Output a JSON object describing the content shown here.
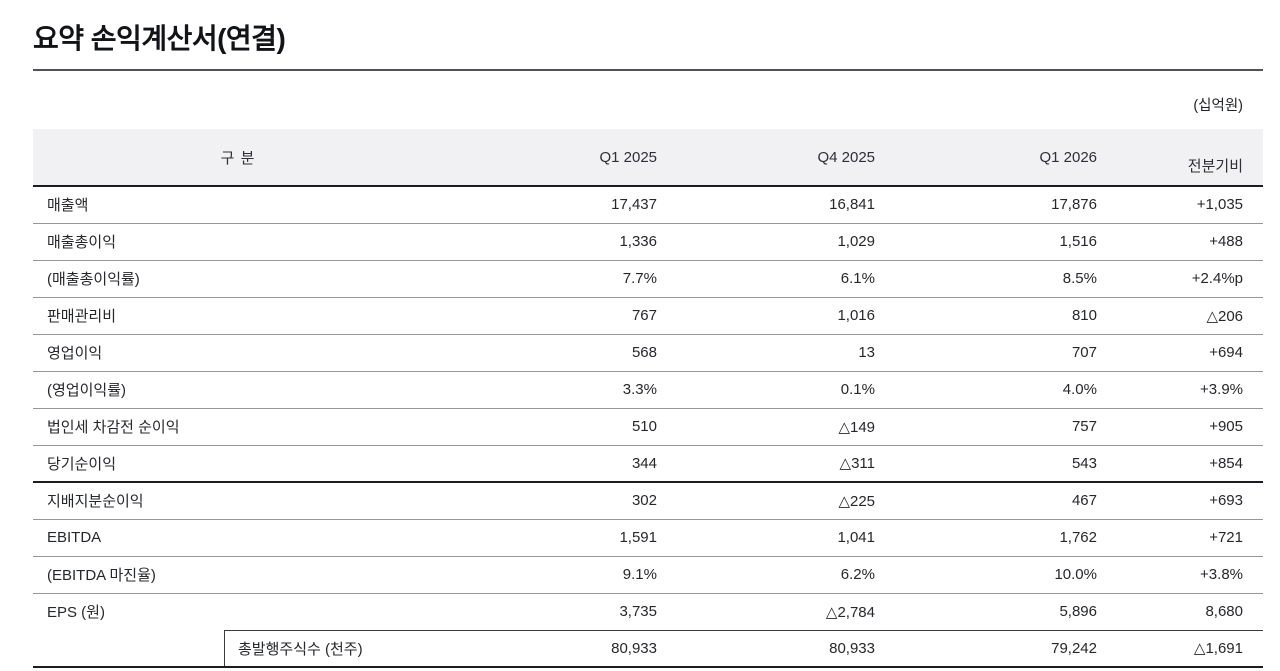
{
  "title": "요약 손익계산서(연결)",
  "unit_label": "(십억원)",
  "table": {
    "header": {
      "category": "구 분",
      "col_q1_2025": "Q1 2025",
      "col_q4_2025": "Q4 2025",
      "col_q1_2026": "Q1 2026",
      "col_qoq": "전분기비"
    },
    "rows": [
      {
        "label": "매출액",
        "q1_2025": "17,437",
        "q4_2025": "16,841",
        "q1_2026": "17,876",
        "qoq": "+1,035"
      },
      {
        "label": "매출총이익",
        "q1_2025": "1,336",
        "q4_2025": "1,029",
        "q1_2026": "1,516",
        "qoq": "+488"
      },
      {
        "label": "(매출총이익률)",
        "q1_2025": "7.7%",
        "q4_2025": "6.1%",
        "q1_2026": "8.5%",
        "qoq": "+2.4%p"
      },
      {
        "label": "판매관리비",
        "q1_2025": "767",
        "q4_2025": "1,016",
        "q1_2026": "810",
        "qoq": "△206"
      },
      {
        "label": "영업이익",
        "q1_2025": "568",
        "q4_2025": "13",
        "q1_2026": "707",
        "qoq": "+694"
      },
      {
        "label": "(영업이익률)",
        "q1_2025": "3.3%",
        "q4_2025": "0.1%",
        "q1_2026": "4.0%",
        "qoq": "+3.9%"
      },
      {
        "label": "법인세 차감전 순이익",
        "q1_2025": "510",
        "q4_2025": "△149",
        "q1_2026": "757",
        "qoq": "+905"
      },
      {
        "label": "당기순이익",
        "q1_2025": "344",
        "q4_2025": "△311",
        "q1_2026": "543",
        "qoq": "+854"
      },
      {
        "label": "지배지분순이익",
        "q1_2025": "302",
        "q4_2025": "△225",
        "q1_2026": "467",
        "qoq": "+693"
      },
      {
        "label": "EBITDA",
        "q1_2025": "1,591",
        "q4_2025": "1,041",
        "q1_2026": "1,762",
        "qoq": "+721"
      },
      {
        "label": "(EBITDA 마진율)",
        "q1_2025": "9.1%",
        "q4_2025": "6.2%",
        "q1_2026": "10.0%",
        "qoq": "+3.8%"
      },
      {
        "label": "EPS (원)",
        "q1_2025": "3,735",
        "q4_2025": "△2,784",
        "q1_2026": "5,896",
        "qoq": "8,680"
      },
      {
        "label": "총발행주식수 (천주)",
        "q1_2025": "80,933",
        "q4_2025": "80,933",
        "q1_2026": "79,242",
        "qoq": "△1,691"
      }
    ]
  },
  "colors": {
    "header_background": "#f1f1f3",
    "emphasis_border": "#1b1c1f",
    "row_border": "#96979b",
    "text": "#26272a"
  }
}
